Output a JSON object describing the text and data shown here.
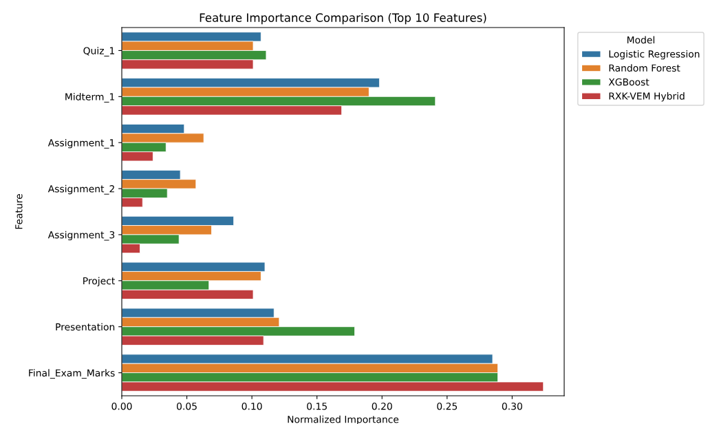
{
  "chart_data": {
    "type": "bar",
    "orientation": "horizontal",
    "title": "Feature Importance Comparison (Top 10 Features)",
    "xlabel": "Normalized Importance",
    "ylabel": "Feature",
    "legend_title": "Model",
    "legend": "top right",
    "grid": false,
    "categories": [
      "Quiz_1",
      "Midterm_1",
      "Assignment_1",
      "Assignment_2",
      "Assignment_3",
      "Project",
      "Presentation",
      "Final_Exam_Marks"
    ],
    "xlim": [
      0,
      0.34
    ],
    "xticks": [
      {
        "value": 0,
        "label": "0.00"
      },
      {
        "value": 0.05,
        "label": "0.05"
      },
      {
        "value": 0.1,
        "label": "0.10"
      },
      {
        "value": 0.15,
        "label": "0.15"
      },
      {
        "value": 0.2,
        "label": "0.20"
      },
      {
        "value": 0.25,
        "label": "0.25"
      },
      {
        "value": 0.3,
        "label": "0.30"
      }
    ],
    "series": [
      {
        "name": "Logistic Regression",
        "color": "#3274a1",
        "values": [
          0.107,
          0.198,
          0.048,
          0.045,
          0.086,
          0.11,
          0.117,
          0.285
        ]
      },
      {
        "name": "Random Forest",
        "color": "#e1812c",
        "values": [
          0.101,
          0.19,
          0.063,
          0.057,
          0.069,
          0.107,
          0.121,
          0.289
        ]
      },
      {
        "name": "XGBoost",
        "color": "#3a923a",
        "values": [
          0.111,
          0.241,
          0.034,
          0.035,
          0.044,
          0.067,
          0.179,
          0.289
        ]
      },
      {
        "name": "RXK-VEM Hybrid",
        "color": "#c03d3e",
        "values": [
          0.101,
          0.169,
          0.024,
          0.016,
          0.014,
          0.101,
          0.109,
          0.324
        ]
      }
    ]
  }
}
